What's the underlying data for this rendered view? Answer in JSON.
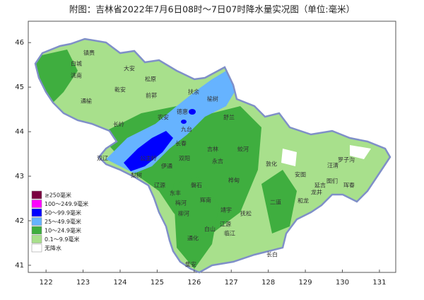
{
  "title": "附图：吉林省2022年7月6日08时～7日07时降水量实况图（单位:毫米）",
  "map": {
    "xlim": [
      121.52,
      131.44
    ],
    "ylim": [
      40.84,
      46.48
    ],
    "xticks": [
      122,
      123,
      124,
      125,
      126,
      127,
      128,
      129,
      130,
      131
    ],
    "yticks": [
      41,
      42,
      43,
      44,
      45,
      46
    ]
  },
  "legend": [
    {
      "label": "≥250毫米",
      "color": "#7b0040"
    },
    {
      "label": "100～249.9毫米",
      "color": "#ff00ff"
    },
    {
      "label": "50～99.9毫米",
      "color": "#0000ff"
    },
    {
      "label": "25～49.9毫米",
      "color": "#66b3ff"
    },
    {
      "label": "10～24.9毫米",
      "color": "#3fae3f"
    },
    {
      "label": "0.1～9.9毫米",
      "color": "#a8e08c"
    },
    {
      "label": "无降水",
      "color": "#ffffff"
    }
  ],
  "places": [
    "镇赉",
    "白城",
    "洮南",
    "大安",
    "松原",
    "乾安",
    "通榆",
    "前郭",
    "扶余",
    "榆树",
    "长岭",
    "农安",
    "德惠",
    "舒兰",
    "双辽",
    "公主岭",
    "长春",
    "九台",
    "吉林",
    "蛟河",
    "敦化",
    "汪清",
    "罗子沟",
    "珲春",
    "图们",
    "延吉",
    "龙井",
    "安图",
    "和龙",
    "梨树",
    "伊通",
    "双阳",
    "磐石",
    "桦甸",
    "辽源",
    "东丰",
    "梅河",
    "柳河",
    "辉南",
    "靖宇",
    "抚松",
    "江源",
    "白山",
    "通化",
    "临江",
    "集安",
    "长白",
    "二道",
    "永吉"
  ]
}
